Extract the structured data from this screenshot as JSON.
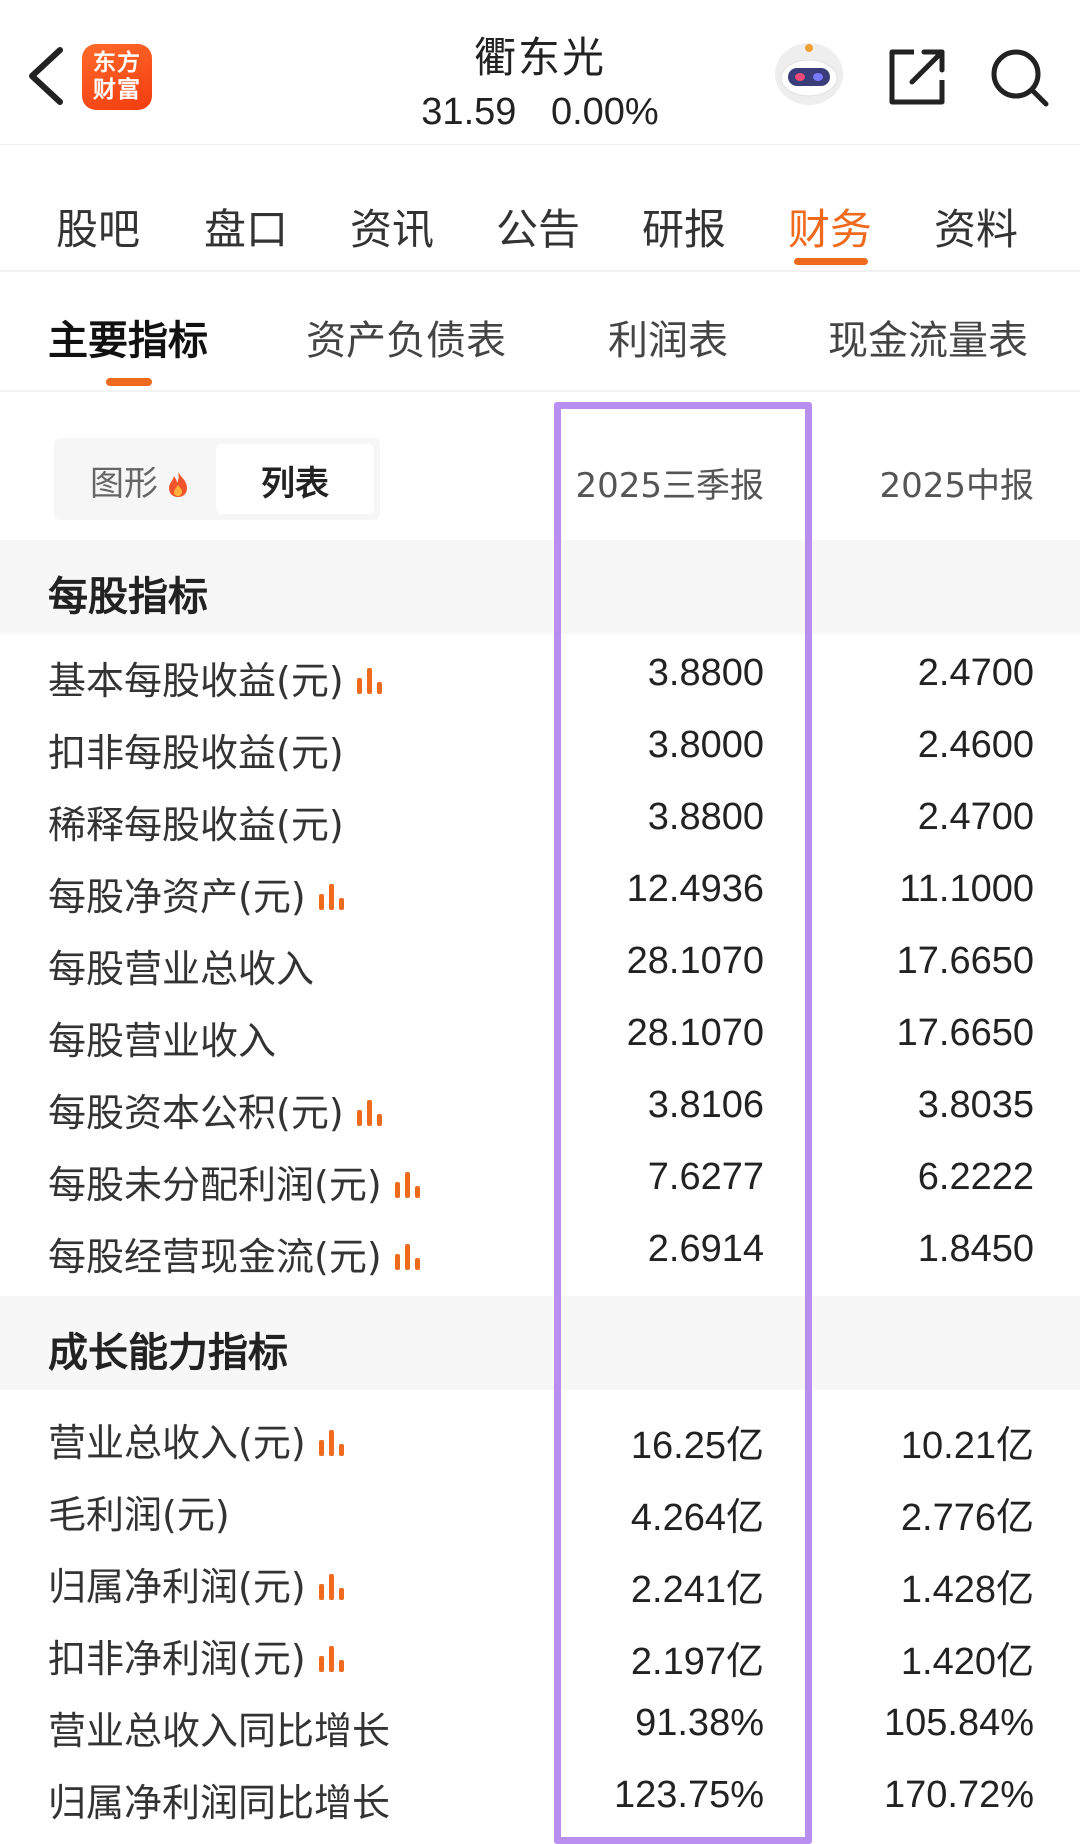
{
  "header": {
    "logo_line1": "东方",
    "logo_line2": "财富",
    "stock_name": "衢东光",
    "price": "31.59",
    "change": "0.00%"
  },
  "tabs": [
    {
      "label": "股吧"
    },
    {
      "label": "盘口"
    },
    {
      "label": "资讯"
    },
    {
      "label": "公告"
    },
    {
      "label": "研报"
    },
    {
      "label": "财务"
    },
    {
      "label": "资料"
    }
  ],
  "subtabs": [
    {
      "label": "主要指标"
    },
    {
      "label": "资产负债表"
    },
    {
      "label": "利润表"
    },
    {
      "label": "现金流量表"
    }
  ],
  "view_toggle": {
    "chart_label": "图形",
    "list_label": "列表"
  },
  "periods": [
    "2025三季报",
    "2025中报"
  ],
  "sections": [
    {
      "title": "每股指标",
      "rows": [
        {
          "label": "基本每股收益(元)",
          "v1": "3.8800",
          "v2": "2.4700"
        },
        {
          "label": "扣非每股收益(元)",
          "v1": "3.8000",
          "v2": "2.4600"
        },
        {
          "label": "稀释每股收益(元)",
          "v1": "3.8800",
          "v2": "2.4700"
        },
        {
          "label": "每股净资产(元)",
          "v1": "12.4936",
          "v2": "11.1000"
        },
        {
          "label": "每股营业总收入",
          "v1": "28.1070",
          "v2": "17.6650"
        },
        {
          "label": "每股营业收入",
          "v1": "28.1070",
          "v2": "17.6650"
        },
        {
          "label": "每股资本公积(元)",
          "v1": "3.8106",
          "v2": "3.8035"
        },
        {
          "label": "每股未分配利润(元)",
          "v1": "7.6277",
          "v2": "6.2222"
        },
        {
          "label": "每股经营现金流(元)",
          "v1": "2.6914",
          "v2": "1.8450"
        }
      ]
    },
    {
      "title": "成长能力指标",
      "rows": [
        {
          "label": "营业总收入(元)",
          "v1": "16.25亿",
          "v2": "10.21亿"
        },
        {
          "label": "毛利润(元)",
          "v1": "4.264亿",
          "v2": "2.776亿"
        },
        {
          "label": "归属净利润(元)",
          "v1": "2.241亿",
          "v2": "1.428亿"
        },
        {
          "label": "扣非净利润(元)",
          "v1": "2.197亿",
          "v2": "1.420亿"
        },
        {
          "label": "营业总收入同比增长",
          "v1": "91.38%",
          "v2": "105.84%"
        },
        {
          "label": "归属净利润同比增长",
          "v1": "123.75%",
          "v2": "170.72%"
        }
      ]
    }
  ],
  "colors": {
    "accent": "#f06a1d",
    "highlight": "#b88ef0"
  }
}
